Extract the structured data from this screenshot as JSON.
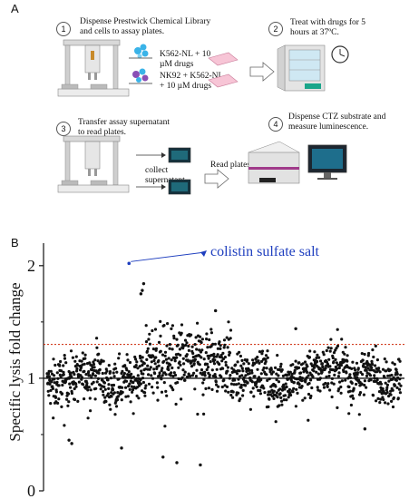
{
  "panel_a": {
    "label": "A",
    "steps": [
      {
        "num": "1",
        "text": "Dispense Prestwick Chemical Library and cells to assay plates."
      },
      {
        "num": "2",
        "text": "Treat with drugs for 5 hours at 37ºC."
      },
      {
        "num": "3",
        "text": "Transfer assay supernatant to read plates."
      },
      {
        "num": "4",
        "text": "Dispense CTZ substrate and measure luminescence."
      }
    ],
    "cond1": "K562-NL + 10 µM drugs",
    "cond2": "NK92 + K562-NL + 10 µM drugs",
    "collect": "collect supernatant",
    "read_plates": "Read plates"
  },
  "panel_b": {
    "label": "B",
    "annotation": "colistin sulfate salt",
    "annotation_color": "#1f3fbf",
    "threshold_color": "#cc2200"
  },
  "chart_data": {
    "type": "scatter",
    "ylabel": "Specific lysis fold change",
    "xlabel": "",
    "ylim": [
      0,
      2.2
    ],
    "yticks": [
      "0",
      "1",
      "2"
    ],
    "reference_line": 1.0,
    "threshold_line": 1.3,
    "highlight": {
      "label": "colistin sulfate salt",
      "x": 297,
      "y": 2.02
    },
    "n_points": 1280,
    "x_range": [
      1,
      1280
    ],
    "outliers": [
      {
        "x": 80,
        "y": 0.45
      },
      {
        "x": 90,
        "y": 0.42
      },
      {
        "x": 270,
        "y": 0.38
      },
      {
        "x": 340,
        "y": 1.75
      },
      {
        "x": 345,
        "y": 1.78
      },
      {
        "x": 350,
        "y": 1.84
      },
      {
        "x": 420,
        "y": 0.3
      },
      {
        "x": 470,
        "y": 0.25
      },
      {
        "x": 555,
        "y": 0.23
      },
      {
        "x": 610,
        "y": 1.6
      },
      {
        "x": 900,
        "y": 1.44
      },
      {
        "x": 1150,
        "y": 0.55
      }
    ]
  }
}
